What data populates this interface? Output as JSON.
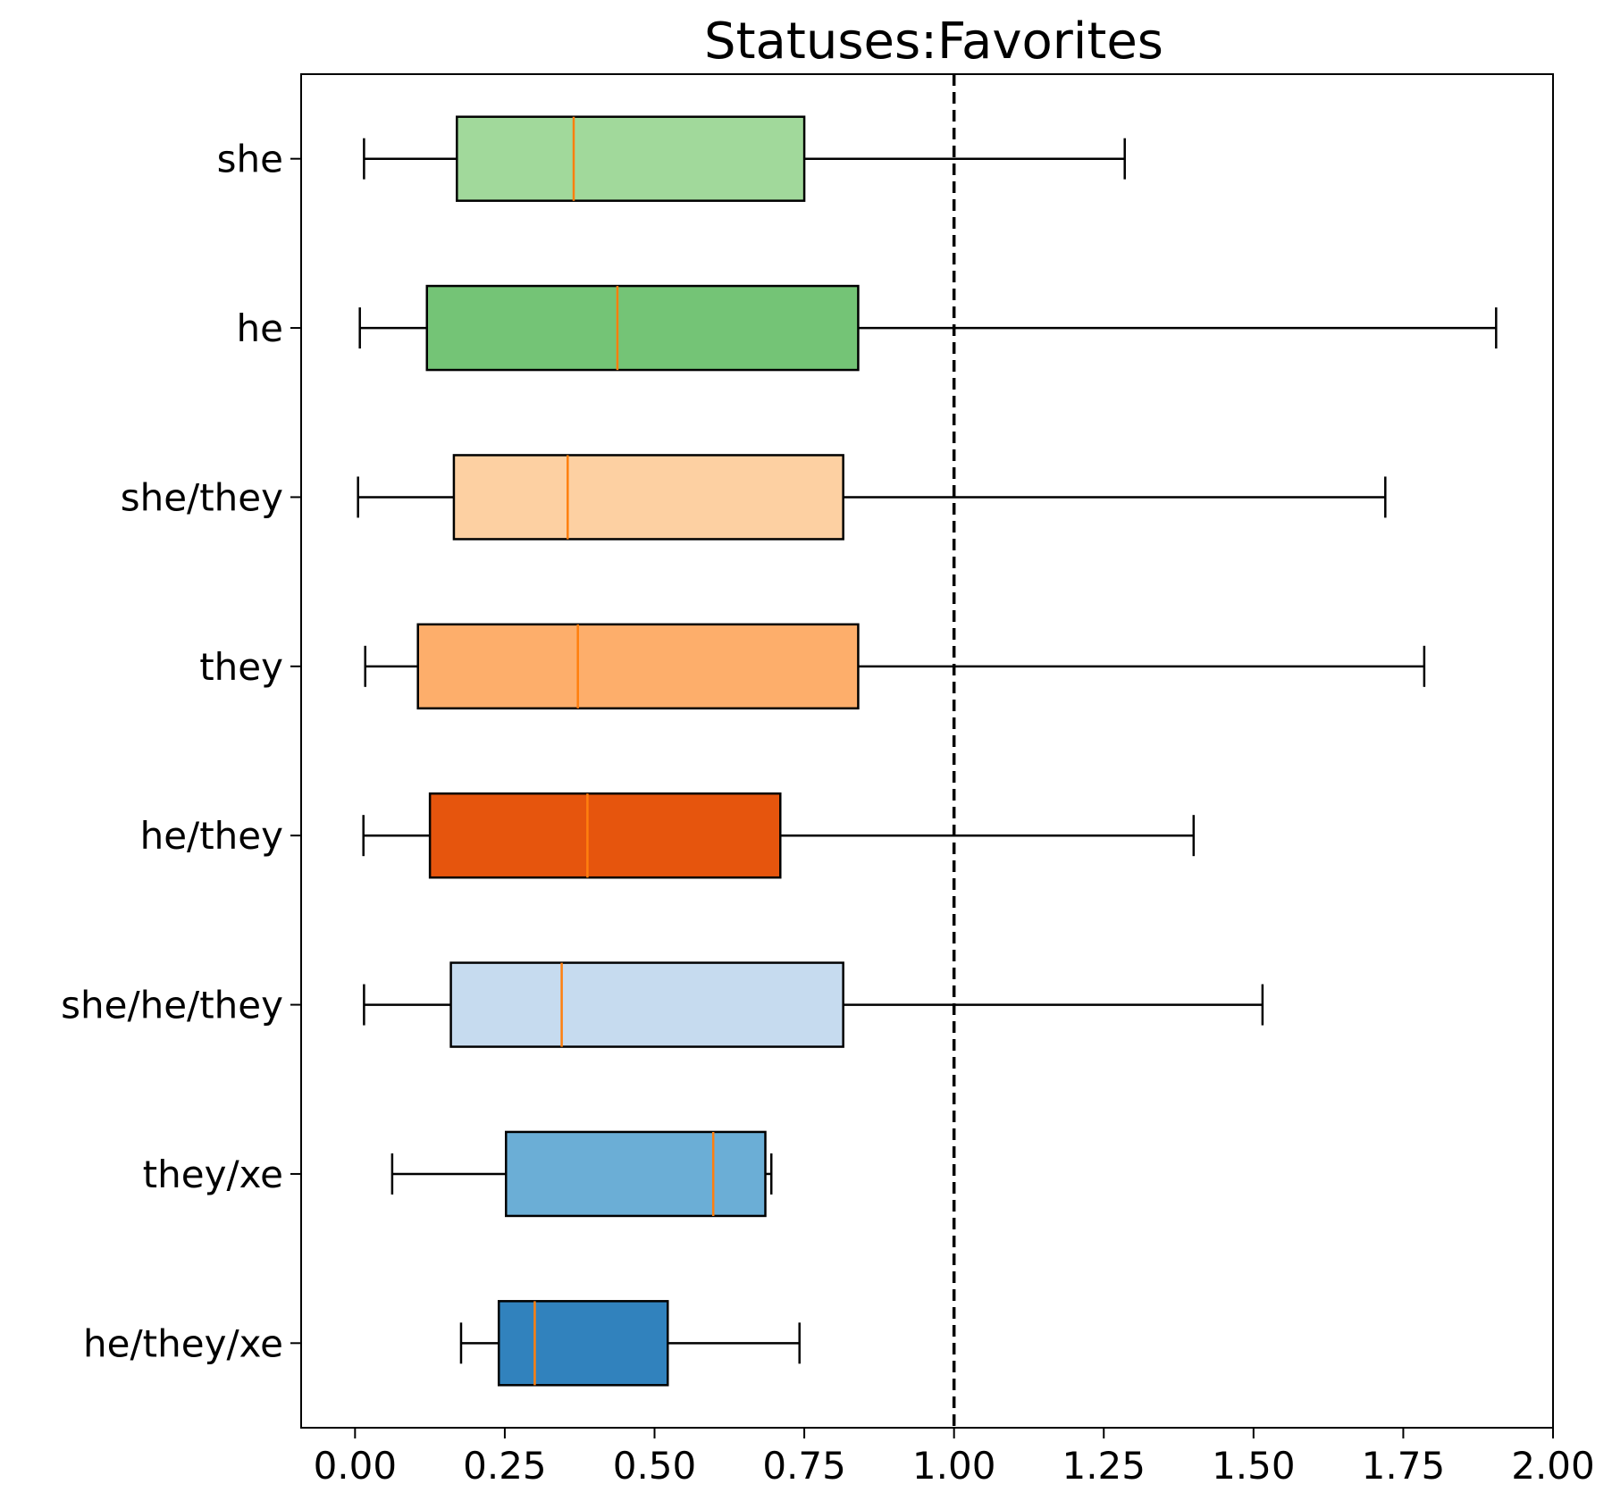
{
  "chart_data": {
    "type": "boxplot",
    "orientation": "horizontal",
    "title": "Statuses:Favorites",
    "xlabel": "",
    "ylabel": "",
    "xlim": [
      -0.09,
      2.0
    ],
    "xticks": [
      0.0,
      0.25,
      0.5,
      0.75,
      1.0,
      1.25,
      1.5,
      1.75,
      2.0
    ],
    "xtick_labels": [
      "0.00",
      "0.25",
      "0.50",
      "0.75",
      "1.00",
      "1.25",
      "1.50",
      "1.75",
      "2.00"
    ],
    "reference_line": {
      "x": 1.0,
      "style": "dashed",
      "color": "#000000"
    },
    "median_color": "#ff7f0e",
    "grid": false,
    "categories": [
      "she",
      "he",
      "she/they",
      "they",
      "he/they",
      "she/he/they",
      "they/xe",
      "he/they/xe"
    ],
    "boxes": [
      {
        "label": "she",
        "whislo": 0.015,
        "q1": 0.17,
        "med": 0.365,
        "q3": 0.75,
        "whishi": 1.285,
        "color": "#a1d99b"
      },
      {
        "label": "he",
        "whislo": 0.008,
        "q1": 0.12,
        "med": 0.438,
        "q3": 0.84,
        "whishi": 1.905,
        "color": "#74c476"
      },
      {
        "label": "she/they",
        "whislo": 0.005,
        "q1": 0.165,
        "med": 0.355,
        "q3": 0.815,
        "whishi": 1.72,
        "color": "#fdd0a2"
      },
      {
        "label": "they",
        "whislo": 0.017,
        "q1": 0.105,
        "med": 0.372,
        "q3": 0.84,
        "whishi": 1.785,
        "color": "#fdae6b"
      },
      {
        "label": "he/they",
        "whislo": 0.014,
        "q1": 0.125,
        "med": 0.388,
        "q3": 0.71,
        "whishi": 1.4,
        "color": "#e6550d"
      },
      {
        "label": "she/he/they",
        "whislo": 0.015,
        "q1": 0.16,
        "med": 0.345,
        "q3": 0.815,
        "whishi": 1.515,
        "color": "#c6dbef"
      },
      {
        "label": "they/xe",
        "whislo": 0.062,
        "q1": 0.252,
        "med": 0.598,
        "q3": 0.685,
        "whishi": 0.695,
        "color": "#6baed6"
      },
      {
        "label": "he/they/xe",
        "whislo": 0.177,
        "q1": 0.24,
        "med": 0.3,
        "q3": 0.522,
        "whishi": 0.742,
        "color": "#3182bd"
      }
    ]
  }
}
